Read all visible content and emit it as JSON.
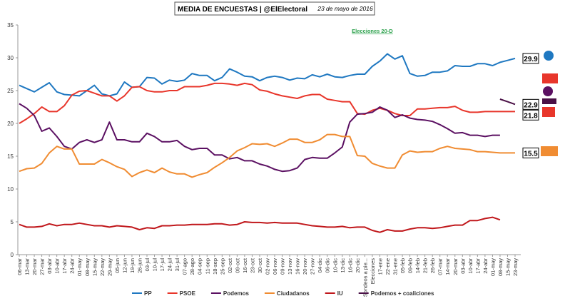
{
  "chart_data": {
    "type": "line",
    "title": "MEDIA DE ENCUESTAS | @ElElectoral",
    "subtitle": "23 de mayo de 2016",
    "annotation": "Elecciones 20-D",
    "annotation_index": 47,
    "categories": [
      "06-mar",
      "13-mar",
      "20-mar",
      "27-mar",
      "03-abr",
      "10-abr",
      "17-abr",
      "24-abr",
      "01-may",
      "08-may",
      "15-may",
      "22-may",
      "29-may",
      "05-jun",
      "12-jun",
      "19-jun",
      "26-jun",
      "03-jul",
      "10-jul",
      "17-jul",
      "24-jul",
      "31-jul",
      "07-ago",
      "28-ago",
      "04-sep",
      "11-sep",
      "18-sep",
      "25-sep",
      "02-oct",
      "09-oct",
      "16-oct",
      "23-oct",
      "30-oct",
      "02-nov",
      "06-nov",
      "09-nov",
      "13-nov",
      "16-nov",
      "20-nov",
      "27-nov",
      "04-dic",
      "06-dic",
      "10-dic",
      "13-dic",
      "16-dic",
      "20-dic",
      "Sondeos a pie...",
      "Elecciones",
      "17-ene",
      "22-ene",
      "31-ene",
      "05-feb",
      "09-feb",
      "14-feb",
      "21-feb",
      "26-feb",
      "07-mar",
      "14-mar",
      "20-mar",
      "03-abr",
      "10-abr",
      "17-abr",
      "24-abr",
      "01-may",
      "08-may",
      "15-may",
      "23-may"
    ],
    "series": [
      {
        "name": "PP",
        "color": "#1f78c1",
        "values": [
          25.8,
          25.3,
          24.8,
          25.5,
          26.2,
          24.8,
          24.4,
          24.3,
          24.2,
          25.0,
          25.8,
          24.5,
          24.2,
          24.5,
          26.3,
          25.5,
          25.6,
          27,
          26.9,
          26.0,
          26.6,
          26.4,
          26.6,
          27.6,
          27.3,
          27.3,
          26.5,
          27.0,
          28.3,
          27.8,
          27.2,
          27.1,
          26.5,
          27,
          27.2,
          27.0,
          26.6,
          26.9,
          26.8,
          27.4,
          27.1,
          27.5,
          27.1,
          27,
          27.3,
          27.5,
          27.5,
          28.7,
          29.5,
          30.6,
          29.8,
          30.3,
          27.6,
          27.2,
          27.3,
          27.8,
          27.8,
          28.0,
          28.8,
          28.7,
          28.7,
          29.1,
          29.1,
          28.8,
          29.3,
          29.6,
          29.9
        ]
      },
      {
        "name": "PSOE",
        "color": "#e8362b",
        "values": [
          20,
          20.7,
          21.5,
          22.5,
          21.8,
          21.8,
          22.7,
          24.3,
          24.9,
          25.0,
          24.6,
          24.2,
          24.2,
          23.4,
          24.2,
          25.5,
          25.6,
          25,
          24.8,
          24.8,
          25,
          25,
          25.6,
          25.6,
          25.6,
          25.8,
          26.1,
          26.1,
          26.0,
          25.8,
          26.1,
          25.9,
          25.1,
          24.9,
          24.5,
          24.2,
          24.0,
          23.8,
          24.2,
          24.4,
          24.4,
          23.7,
          23.5,
          23.3,
          23.3,
          21.5,
          21.4,
          22,
          22.3,
          22,
          21.5,
          21.2,
          21.2,
          22.2,
          22.2,
          22.3,
          22.4,
          22.4,
          22.6,
          22.0,
          21.7,
          21.7,
          21.8,
          21.8,
          21.8,
          21.8,
          21.8
        ]
      },
      {
        "name": "Podemos",
        "color": "#5b1062",
        "values": [
          23,
          22.3,
          21.2,
          18.8,
          19.3,
          18,
          16.5,
          16.1,
          17.1,
          17.5,
          17.1,
          17.5,
          20.2,
          17.5,
          17.5,
          17.2,
          17.2,
          18.5,
          18.0,
          17.2,
          17.2,
          17.4,
          16.5,
          16,
          16.2,
          16.2,
          15.2,
          15.2,
          14.6,
          14.8,
          14.3,
          14.3,
          13.8,
          13.5,
          13.0,
          12.7,
          12.8,
          13.2,
          14.5,
          14.8,
          14.7,
          14.7,
          15.5,
          16.4,
          20.2,
          21.4,
          21.5,
          21.7,
          22.5,
          22,
          20.9,
          21.3,
          20.8,
          20.6,
          20.5,
          20.3,
          19.8,
          19.2,
          18.5,
          18.6,
          18.2,
          18.2,
          18.0,
          18.2,
          18.2,
          null,
          null
        ]
      },
      {
        "name": "Ciudadanos",
        "color": "#f08c32",
        "values": [
          12.7,
          13.1,
          13.2,
          13.9,
          15.5,
          16.5,
          16.1,
          16.1,
          13.8,
          13.8,
          13.8,
          14.5,
          14.0,
          13.4,
          13.0,
          11.9,
          12.5,
          12.9,
          12.5,
          13.2,
          12.6,
          12.3,
          12.3,
          11.8,
          12.2,
          12.5,
          13.3,
          14.0,
          14.8,
          15.8,
          16.3,
          16.9,
          16.8,
          16.9,
          16.5,
          17.0,
          17.6,
          17.6,
          17.1,
          17.1,
          17.5,
          18.3,
          18.3,
          18.0,
          18.0,
          15.1,
          15,
          13.9,
          13.5,
          13.2,
          13.2,
          15.2,
          15.8,
          15.6,
          15.7,
          15.7,
          16.2,
          16.5,
          16.2,
          16.1,
          16.0,
          15.7,
          15.7,
          15.6,
          15.5,
          15.5,
          15.5
        ]
      },
      {
        "name": "IU",
        "color": "#c0171b",
        "values": [
          4.6,
          4.2,
          4.2,
          4.3,
          4.7,
          4.4,
          4.6,
          4.6,
          4.8,
          4.6,
          4.4,
          4.4,
          4.2,
          4.4,
          4.3,
          4.2,
          3.8,
          4.1,
          4,
          4.4,
          4.4,
          4.5,
          4.5,
          4.6,
          4.6,
          4.6,
          4.7,
          4.7,
          4.5,
          4.6,
          5,
          4.9,
          4.9,
          4.8,
          4.9,
          4.8,
          4.8,
          4.8,
          4.6,
          4.4,
          4.3,
          4.2,
          4.2,
          4.3,
          4.1,
          4.2,
          4.2,
          3.7,
          3.4,
          3.8,
          3.6,
          3.6,
          3.9,
          4.1,
          4.1,
          4.0,
          4.1,
          4.3,
          4.5,
          4.5,
          5.2,
          5.2,
          5.5,
          5.7,
          5.3,
          null,
          null
        ]
      },
      {
        "name": "Podemos + coaliciones",
        "color": "#4a1046",
        "values": [
          null,
          null,
          null,
          null,
          null,
          null,
          null,
          null,
          null,
          null,
          null,
          null,
          null,
          null,
          null,
          null,
          null,
          null,
          null,
          null,
          null,
          null,
          null,
          null,
          null,
          null,
          null,
          null,
          null,
          null,
          null,
          null,
          null,
          null,
          null,
          null,
          null,
          null,
          null,
          null,
          null,
          null,
          null,
          null,
          null,
          null,
          null,
          null,
          null,
          null,
          null,
          null,
          null,
          null,
          null,
          null,
          null,
          null,
          null,
          null,
          null,
          null,
          null,
          null,
          23.7,
          23.3,
          22.9
        ]
      }
    ],
    "callouts": [
      "chart_data.series.0.values.66",
      "chart_data.series.5.values.66",
      "chart_data.series.1.values.66",
      "chart_data.series.3.values.66"
    ],
    "ylim": [
      0,
      35
    ],
    "yticks": [
      0,
      5,
      10,
      15,
      20,
      25,
      30,
      35
    ]
  }
}
